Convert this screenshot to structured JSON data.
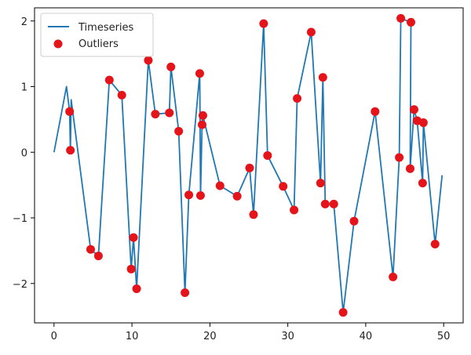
{
  "chart_data": {
    "type": "line",
    "title": "",
    "xlabel": "",
    "ylabel": "",
    "xlim": [
      -2.5,
      52.5
    ],
    "ylim": [
      -2.6,
      2.2
    ],
    "xticks": [
      0,
      10,
      20,
      30,
      40,
      50
    ],
    "yticks": [
      -2,
      -1,
      0,
      1,
      2
    ],
    "xtick_labels": [
      "0",
      "10",
      "20",
      "30",
      "40",
      "50"
    ],
    "ytick_labels": [
      "−2",
      "−1",
      "0",
      "1",
      "2"
    ],
    "grid": false,
    "legend": {
      "position": "upper-left",
      "entries": [
        {
          "label": "Timeseries",
          "marker": "line",
          "color": "#1f77b4"
        },
        {
          "label": "Outliers",
          "marker": "dot",
          "color": "#e5141b"
        }
      ]
    },
    "series": [
      {
        "name": "Timeseries",
        "color": "#1f77b4",
        "points": [
          [
            0,
            0.0
          ],
          [
            1.6,
            1.0
          ],
          [
            2.0,
            0.62
          ],
          [
            2.1,
            0.03
          ],
          [
            2.2,
            0.8
          ],
          [
            4.7,
            -1.48
          ],
          [
            5.7,
            -1.58
          ],
          [
            7.1,
            1.1
          ],
          [
            8.7,
            0.87
          ],
          [
            9.9,
            -1.78
          ],
          [
            10.2,
            -1.3
          ],
          [
            10.6,
            -2.08
          ],
          [
            12.1,
            1.4
          ],
          [
            13.0,
            0.58
          ],
          [
            14.8,
            0.6
          ],
          [
            15.0,
            1.3
          ],
          [
            16.0,
            0.32
          ],
          [
            16.8,
            -2.14
          ],
          [
            17.3,
            -0.65
          ],
          [
            18.7,
            1.2
          ],
          [
            18.8,
            -0.66
          ],
          [
            19.0,
            0.42
          ],
          [
            19.1,
            0.56
          ],
          [
            21.3,
            -0.51
          ],
          [
            23.5,
            -0.67
          ],
          [
            25.1,
            -0.24
          ],
          [
            25.6,
            -0.95
          ],
          [
            26.9,
            1.96
          ],
          [
            27.4,
            -0.05
          ],
          [
            29.4,
            -0.52
          ],
          [
            30.8,
            -0.88
          ],
          [
            31.2,
            0.82
          ],
          [
            33.0,
            1.83
          ],
          [
            34.2,
            -0.47
          ],
          [
            34.5,
            1.14
          ],
          [
            34.8,
            -0.79
          ],
          [
            35.9,
            -0.79
          ],
          [
            37.1,
            -2.44
          ],
          [
            38.5,
            -1.05
          ],
          [
            41.2,
            0.62
          ],
          [
            43.5,
            -1.9
          ],
          [
            44.3,
            -0.08
          ],
          [
            44.5,
            2.04
          ],
          [
            45.8,
            1.98
          ],
          [
            45.7,
            -0.25
          ],
          [
            46.2,
            0.65
          ],
          [
            46.6,
            0.48
          ],
          [
            47.3,
            -0.47
          ],
          [
            47.4,
            0.45
          ],
          [
            48.9,
            -1.4
          ],
          [
            49.8,
            -0.35
          ]
        ]
      },
      {
        "name": "Outliers",
        "type": "scatter",
        "color": "#e5141b",
        "points": [
          [
            2.0,
            0.62
          ],
          [
            2.1,
            0.03
          ],
          [
            4.7,
            -1.48
          ],
          [
            5.7,
            -1.58
          ],
          [
            7.1,
            1.1
          ],
          [
            8.7,
            0.87
          ],
          [
            9.9,
            -1.78
          ],
          [
            10.2,
            -1.3
          ],
          [
            10.6,
            -2.08
          ],
          [
            12.1,
            1.4
          ],
          [
            13.0,
            0.58
          ],
          [
            14.8,
            0.6
          ],
          [
            15.0,
            1.3
          ],
          [
            16.0,
            0.32
          ],
          [
            16.8,
            -2.14
          ],
          [
            17.3,
            -0.65
          ],
          [
            18.7,
            1.2
          ],
          [
            18.8,
            -0.66
          ],
          [
            19.0,
            0.42
          ],
          [
            19.1,
            0.56
          ],
          [
            21.3,
            -0.51
          ],
          [
            23.5,
            -0.67
          ],
          [
            25.1,
            -0.24
          ],
          [
            25.6,
            -0.95
          ],
          [
            26.9,
            1.96
          ],
          [
            27.4,
            -0.05
          ],
          [
            29.4,
            -0.52
          ],
          [
            30.8,
            -0.88
          ],
          [
            31.2,
            0.82
          ],
          [
            33.0,
            1.83
          ],
          [
            34.2,
            -0.47
          ],
          [
            34.5,
            1.14
          ],
          [
            34.8,
            -0.79
          ],
          [
            35.9,
            -0.79
          ],
          [
            37.1,
            -2.44
          ],
          [
            38.5,
            -1.05
          ],
          [
            41.2,
            0.62
          ],
          [
            43.5,
            -1.9
          ],
          [
            44.3,
            -0.08
          ],
          [
            44.5,
            2.04
          ],
          [
            45.7,
            -0.25
          ],
          [
            45.8,
            1.98
          ],
          [
            46.2,
            0.65
          ],
          [
            46.6,
            0.48
          ],
          [
            47.3,
            -0.47
          ],
          [
            47.4,
            0.45
          ],
          [
            48.9,
            -1.4
          ]
        ]
      }
    ]
  }
}
